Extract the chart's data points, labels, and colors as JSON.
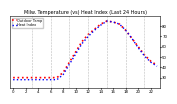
{
  "title": "Milw. Temperature (vs) Heat Index (Last 24 Hours)",
  "temp": [
    30,
    30,
    30,
    30,
    30,
    30,
    30,
    30,
    35,
    45,
    55,
    65,
    72,
    77,
    82,
    85,
    84,
    82,
    76,
    68,
    60,
    52,
    46,
    42
  ],
  "heat_index": [
    28,
    28,
    28,
    28,
    28,
    28,
    28,
    28,
    33,
    43,
    53,
    63,
    70,
    76,
    81,
    85,
    84,
    82,
    76,
    68,
    59,
    51,
    45,
    41
  ],
  "temp_color": "#ff0000",
  "heat_color": "#0000ff",
  "ylim": [
    20,
    90
  ],
  "yticks": [
    30,
    40,
    50,
    60,
    70,
    80
  ],
  "bg_color": "#ffffff",
  "grid_color": "#aaaaaa",
  "legend_labels": [
    "Outdoor Temp",
    "Heat Index"
  ],
  "n_points": 24,
  "title_fontsize": 3.5,
  "tick_fontsize": 2.8,
  "legend_fontsize": 2.5
}
